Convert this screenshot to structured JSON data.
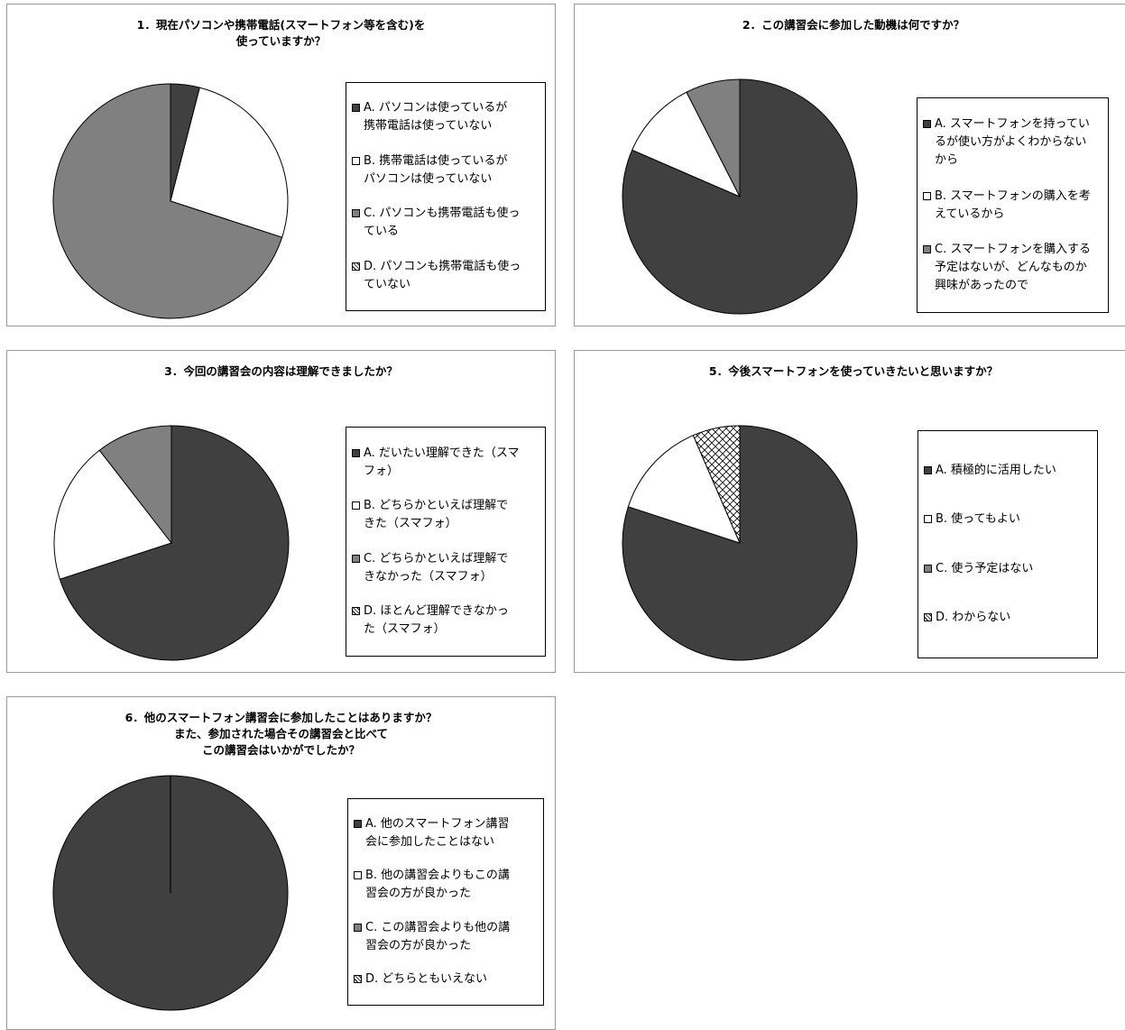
{
  "colors": {
    "A": "#404040",
    "B": "#ffffff",
    "C": "#808080",
    "D": "crosshatch"
  },
  "chart_data": [
    {
      "type": "pie",
      "title": "1．現在パソコンや携帯電話(スマートフォン等を含む)を\n使っていますか？",
      "categories": [
        "A. パソコンは使っているが携帯電話は使っていない",
        "B. 携帯電話は使っているがパソコンは使っていない",
        "C. パソコンも携帯電話も使っている",
        "D. パソコンも携帯電話も使っていない"
      ],
      "values": [
        4,
        26,
        70,
        0
      ]
    },
    {
      "type": "pie",
      "title": "2．この講習会に参加した動機は何ですか？",
      "categories": [
        "A. スマートフォンを持っているが使い方がよくわからないから",
        "B. スマートフォンの購入を考えているから",
        "C. スマートフォンを購入する予定はないが、どんなものか興味があったので"
      ],
      "values": [
        81.5,
        11,
        7.5
      ]
    },
    {
      "type": "pie",
      "title": "3．今回の講習会の内容は理解できましたか？",
      "categories": [
        "A. だいたい理解できた（スマフォ）",
        "B. どちらかといえば理解できた（スマフォ）",
        "C. どちらかといえば理解できなかった（スマフォ）",
        "D. ほとんど理解できなかった（スマフォ）"
      ],
      "values": [
        70,
        19.5,
        10.5,
        0
      ]
    },
    {
      "type": "pie",
      "title": "5．今後スマートフォンを使っていきたいと思いますか？",
      "categories": [
        "A. 積極的に活用したい",
        "B. 使ってもよい",
        "C. 使う予定はない",
        "D. わからない"
      ],
      "values": [
        80,
        13.5,
        0,
        6.5
      ]
    },
    {
      "type": "pie",
      "title": "6．他のスマートフォン講習会に参加したことはありますか？\nまた、参加された場合その講習会と比べて\nこの講習会はいかがでしたか？",
      "categories": [
        "A. 他のスマートフォン講習会に参加したことはない",
        "B. 他の講習会よりもこの講習会の方が良かった",
        "C. この講習会よりも他の講習会の方が良かった",
        "D. どちらともいえない"
      ],
      "values": [
        100,
        0,
        0,
        0
      ]
    }
  ],
  "legends": [
    {
      "items": [
        {
          "key": "A",
          "lines": [
            "A. パソコンは使っているが",
            "携帯電話は使っていない"
          ]
        },
        {
          "key": "B",
          "lines": [
            "B. 携帯電話は使っているが",
            "パソコンは使っていない"
          ]
        },
        {
          "key": "C",
          "lines": [
            "C. パソコンも携帯電話も使っ",
            "ている"
          ]
        },
        {
          "key": "D",
          "lines": [
            "D. パソコンも携帯電話も使っ",
            "ていない"
          ]
        }
      ]
    },
    {
      "items": [
        {
          "key": "A",
          "lines": [
            "A. スマートフォンを持ってい",
            "るが使い方がよくわからない",
            "から"
          ]
        },
        {
          "key": "B",
          "lines": [
            "B. スマートフォンの購入を考",
            "えているから"
          ]
        },
        {
          "key": "C",
          "lines": [
            "C. スマートフォンを購入する",
            "予定はないが、どんなものか",
            "興味があったので"
          ]
        }
      ]
    },
    {
      "items": [
        {
          "key": "A",
          "lines": [
            "A. だいたい理解できた（スマ",
            "フォ）"
          ]
        },
        {
          "key": "B",
          "lines": [
            "B. どちらかといえば理解で",
            "きた（スマフォ）"
          ]
        },
        {
          "key": "C",
          "lines": [
            "C. どちらかといえば理解で",
            "きなかった（スマフォ）"
          ]
        },
        {
          "key": "D",
          "lines": [
            "D. ほとんど理解できなかっ",
            "た（スマフォ）"
          ]
        }
      ]
    },
    {
      "items": [
        {
          "key": "A",
          "lines": [
            "A. 積極的に活用したい"
          ]
        },
        {
          "key": "B",
          "lines": [
            "B. 使ってもよい"
          ]
        },
        {
          "key": "C",
          "lines": [
            "C. 使う予定はない"
          ]
        },
        {
          "key": "D",
          "lines": [
            "D. わからない"
          ]
        }
      ]
    },
    {
      "items": [
        {
          "key": "A",
          "lines": [
            "A. 他のスマートフォン講習",
            "会に参加したことはない"
          ]
        },
        {
          "key": "B",
          "lines": [
            "B. 他の講習会よりもこの講",
            "習会の方が良かった"
          ]
        },
        {
          "key": "C",
          "lines": [
            "C. この講習会よりも他の講",
            "習会の方が良かった"
          ]
        },
        {
          "key": "D",
          "lines": [
            "D. どちらともいえない"
          ]
        }
      ]
    }
  ]
}
